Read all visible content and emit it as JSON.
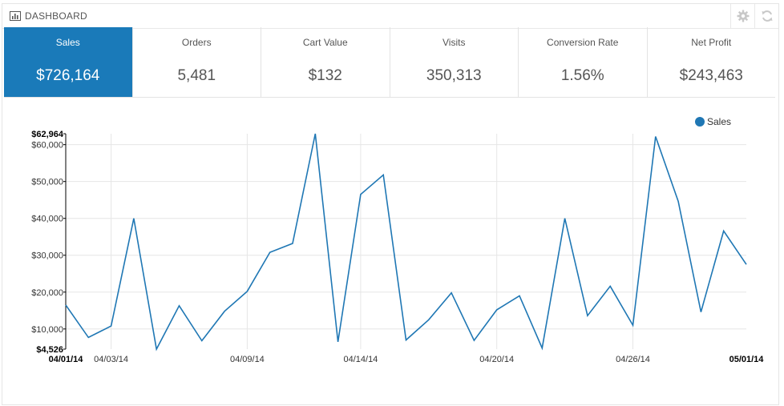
{
  "header": {
    "title": "DASHBOARD",
    "icons": [
      "bar-chart-icon",
      "gear-icon",
      "refresh-icon"
    ]
  },
  "stats": [
    {
      "label": "Sales",
      "value": "$726,164",
      "active": true
    },
    {
      "label": "Orders",
      "value": "5,481",
      "active": false
    },
    {
      "label": "Cart Value",
      "value": "$132",
      "active": false
    },
    {
      "label": "Visits",
      "value": "350,313",
      "active": false
    },
    {
      "label": "Conversion Rate",
      "value": "1.56%",
      "active": false
    },
    {
      "label": "Net Profit",
      "value": "$243,463",
      "active": false
    }
  ],
  "colors": {
    "accent": "#1a7ab9",
    "line": "#1f77b4"
  },
  "chart_data": {
    "type": "line",
    "legend": "top-right",
    "grid": true,
    "series": [
      {
        "name": "Sales",
        "x": [
          "04/01/14",
          "04/02/14",
          "04/03/14",
          "04/04/14",
          "04/05/14",
          "04/06/14",
          "04/07/14",
          "04/08/14",
          "04/09/14",
          "04/10/14",
          "04/11/14",
          "04/12/14",
          "04/13/14",
          "04/14/14",
          "04/15/14",
          "04/16/14",
          "04/17/14",
          "04/18/14",
          "04/19/14",
          "04/20/14",
          "04/21/14",
          "04/22/14",
          "04/23/14",
          "04/24/14",
          "04/25/14",
          "04/26/14",
          "04/27/14",
          "04/28/14",
          "04/29/14",
          "04/30/14",
          "05/01/14"
        ],
        "values": [
          16500,
          7700,
          10800,
          40000,
          4526,
          16300,
          6800,
          14800,
          20200,
          30800,
          33200,
          62964,
          6500,
          46500,
          51800,
          7000,
          12500,
          19800,
          6900,
          15200,
          19000,
          4800,
          40000,
          13600,
          21600,
          11000,
          62200,
          44600,
          14600,
          36600,
          27500
        ]
      }
    ],
    "y_ticks": [
      "$62,964",
      "$60,000",
      "$50,000",
      "$40,000",
      "$30,000",
      "$20,000",
      "$10,000",
      "$4,526"
    ],
    "y_tick_values": [
      62964,
      60000,
      50000,
      40000,
      30000,
      20000,
      10000,
      4526
    ],
    "x_ticks": [
      "04/01/14",
      "04/03/14",
      "04/09/14",
      "04/14/14",
      "04/20/14",
      "04/26/14",
      "05/01/14"
    ],
    "x_tick_index": [
      0,
      2,
      8,
      13,
      19,
      25,
      30
    ],
    "ylim": [
      4526,
      62964
    ]
  }
}
